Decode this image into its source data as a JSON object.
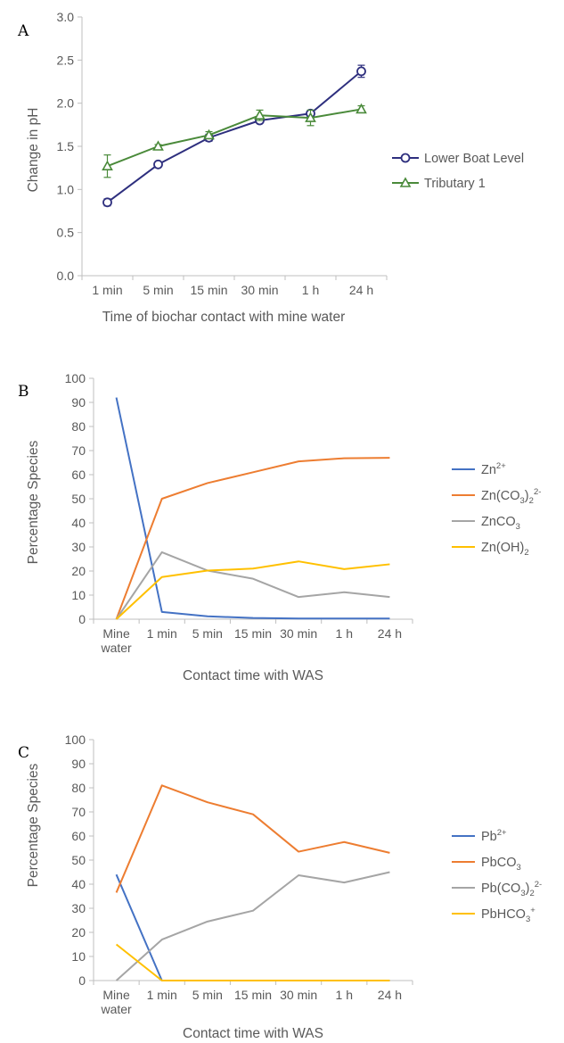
{
  "panels": [
    {
      "letter": "A",
      "chart_data": {
        "type": "line",
        "categories": [
          "1 min",
          "5 min",
          "15 min",
          "30 min",
          "1 h",
          "24 h"
        ],
        "xlabel": "Time of biochar contact with mine water",
        "ylabel": "Change in pH",
        "ylim": [
          0,
          3
        ],
        "yticks": [
          "0.0",
          "0.5",
          "1.0",
          "1.5",
          "2.0",
          "2.5",
          "3.0"
        ],
        "grid": false,
        "legend": "right",
        "series": [
          {
            "name": "Lower Boat Level",
            "color": "#2e2f7e",
            "marker": "circle",
            "values": [
              0.85,
              1.29,
              1.6,
              1.8,
              1.88,
              2.37
            ],
            "errors": [
              0.04,
              0.03,
              0.04,
              0.02,
              0.03,
              0.07
            ]
          },
          {
            "name": "Tributary 1",
            "color": "#4a8a3a",
            "marker": "triangle",
            "values": [
              1.27,
              1.5,
              1.63,
              1.86,
              1.83,
              1.93
            ],
            "errors": [
              0.13,
              0.02,
              0.04,
              0.06,
              0.09,
              0.04
            ]
          }
        ]
      }
    },
    {
      "letter": "B",
      "chart_data": {
        "type": "line",
        "categories": [
          "Mine water",
          "1 min",
          "5 min",
          "15 min",
          "30 min",
          "1 h",
          "24 h"
        ],
        "xlabel": "Contact time with WAS",
        "ylabel": "Percentage Species",
        "ylim": [
          0,
          100
        ],
        "yticks": [
          "0",
          "10",
          "20",
          "30",
          "40",
          "50",
          "60",
          "70",
          "80",
          "90",
          "100"
        ],
        "grid": false,
        "legend": "right",
        "series": [
          {
            "name": "Zn²⁺",
            "color": "#4472c4",
            "values": [
              92,
              3,
              1.2,
              0.5,
              0.3,
              0.3,
              0.3
            ]
          },
          {
            "name": "Zn(CO₃)₂²⁻",
            "color": "#ed7d31",
            "values": [
              0,
              50,
              56.5,
              61,
              65.5,
              66.8,
              67
            ]
          },
          {
            "name": "ZnCO₃",
            "color": "#a5a5a5",
            "values": [
              0,
              27.8,
              20.2,
              16.8,
              9.2,
              11.2,
              9.2
            ]
          },
          {
            "name": "Zn(OH)₂",
            "color": "#ffc000",
            "values": [
              0,
              17.5,
              20.2,
              21,
              24,
              20.8,
              22.8
            ]
          }
        ]
      }
    },
    {
      "letter": "C",
      "chart_data": {
        "type": "line",
        "categories": [
          "Mine water",
          "1 min",
          "5 min",
          "15 min",
          "30 min",
          "1 h",
          "24 h"
        ],
        "xlabel": "Contact time with WAS",
        "ylabel": "Percentage Species",
        "ylim": [
          0,
          100
        ],
        "yticks": [
          "0",
          "10",
          "20",
          "30",
          "40",
          "50",
          "60",
          "70",
          "80",
          "90",
          "100"
        ],
        "grid": false,
        "legend": "right",
        "series": [
          {
            "name": "Pb²⁺",
            "color": "#4472c4",
            "values": [
              44,
              0,
              0,
              0,
              0,
              0,
              0
            ]
          },
          {
            "name": "PbCO₃",
            "color": "#ed7d31",
            "values": [
              36.5,
              81,
              74,
              69,
              53.5,
              57.5,
              53
            ]
          },
          {
            "name": "Pb(CO₃)₂²⁻",
            "color": "#a5a5a5",
            "values": [
              0,
              17,
              24.5,
              29,
              43.7,
              40.7,
              45
            ]
          },
          {
            "name": "PbHCO₃⁺",
            "color": "#ffc000",
            "values": [
              15,
              0,
              0,
              0,
              0,
              0,
              0
            ]
          }
        ]
      }
    }
  ]
}
